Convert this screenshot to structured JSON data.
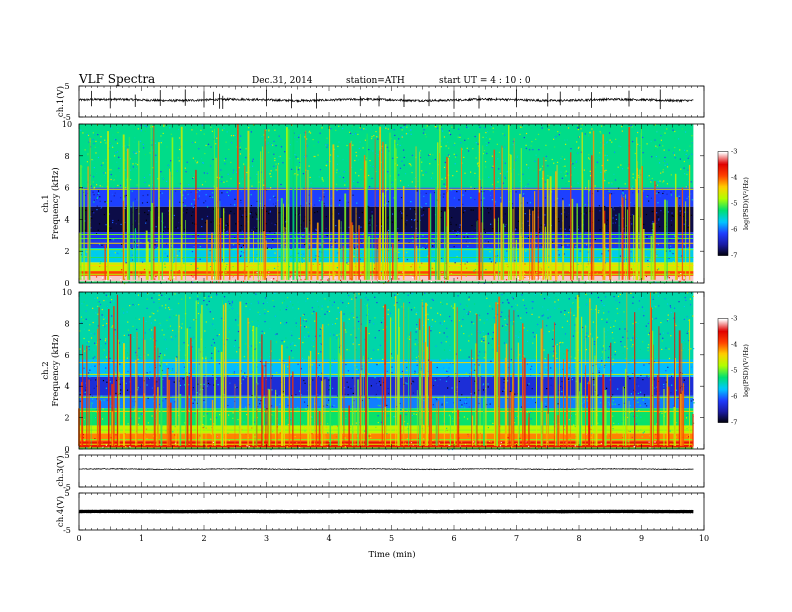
{
  "header": {
    "title": "VLF Spectra",
    "date": "Dec.31, 2014",
    "station": "station=ATH",
    "start": "start  UT  =   4  : 10 : 0"
  },
  "chart_data": [
    {
      "type": "line",
      "panel": "ch1-waveform",
      "ylabel": "ch.1(V)",
      "ylim": [
        -5,
        5
      ],
      "y_ticks": [
        "5",
        "-5"
      ],
      "xlim": [
        0,
        9.83
      ],
      "baseline": 0.5,
      "noise_amplitude": 0.35,
      "spikes": [
        0.2,
        0.5,
        0.9,
        1.3,
        1.7,
        2.0,
        2.15,
        2.25,
        2.3,
        3.0,
        3.4,
        3.8,
        4.5,
        4.8,
        5.2,
        5.6,
        6.0,
        6.4,
        7.0,
        7.5,
        7.7,
        8.2,
        8.8,
        9.3
      ]
    },
    {
      "type": "heatmap",
      "panel": "ch1-spectrogram",
      "ylabel": "Frequency  (kHz)",
      "channel_label": "ch.1",
      "ylim": [
        0,
        10
      ],
      "y_ticks": [
        "0",
        "2",
        "4",
        "6",
        "8",
        "10"
      ],
      "xlim": [
        0,
        9.83
      ],
      "colorbar": {
        "label": "log(PSD)(V²/Hz)",
        "range": [
          -7,
          -3
        ],
        "ticks": [
          "-3",
          "-4",
          "-5",
          "-6",
          "-7"
        ]
      },
      "bands_khz": [
        {
          "y0": 0.0,
          "y1": 0.1,
          "level": -5.2
        },
        {
          "y0": 0.1,
          "y1": 0.45,
          "level": -3.1
        },
        {
          "y0": 0.45,
          "y1": 0.75,
          "level": -3.9
        },
        {
          "y0": 0.75,
          "y1": 1.3,
          "level": -4.6
        },
        {
          "y0": 1.3,
          "y1": 2.2,
          "level": -5.6
        },
        {
          "y0": 2.2,
          "y1": 3.2,
          "level": -6.2
        },
        {
          "y0": 3.2,
          "y1": 4.8,
          "level": -6.8
        },
        {
          "y0": 4.8,
          "y1": 6.0,
          "level": -6.1
        },
        {
          "y0": 6.0,
          "y1": 10.0,
          "level": -5.3
        }
      ],
      "lines_khz": [
        0.55,
        1.1,
        1.6,
        2.1,
        2.5,
        2.8,
        3.05,
        5.9
      ],
      "sferic_level": -4.6
    },
    {
      "type": "heatmap",
      "panel": "ch2-spectrogram",
      "ylabel": "Frequency  (kHz)",
      "channel_label": "ch.2",
      "ylim": [
        0,
        10
      ],
      "y_ticks": [
        "0",
        "2",
        "4",
        "6",
        "8",
        "10"
      ],
      "xlim": [
        0,
        9.83
      ],
      "colorbar": {
        "label": "log(PSD)(V²/Hz)",
        "range": [
          -7,
          -3
        ],
        "ticks": [
          "-3",
          "-4",
          "-5",
          "-6",
          "-7"
        ]
      },
      "bands_khz": [
        {
          "y0": 0.0,
          "y1": 0.1,
          "level": -5.0
        },
        {
          "y0": 0.1,
          "y1": 0.5,
          "level": -3.6
        },
        {
          "y0": 0.5,
          "y1": 1.0,
          "level": -4.1
        },
        {
          "y0": 1.0,
          "y1": 1.5,
          "level": -4.7
        },
        {
          "y0": 1.5,
          "y1": 2.6,
          "level": -5.2
        },
        {
          "y0": 2.6,
          "y1": 3.4,
          "level": -5.9
        },
        {
          "y0": 3.4,
          "y1": 4.6,
          "level": -6.3
        },
        {
          "y0": 4.6,
          "y1": 5.7,
          "level": -5.7
        },
        {
          "y0": 5.7,
          "y1": 10.0,
          "level": -5.4
        }
      ],
      "lines_khz": [
        0.3,
        0.6,
        1.2,
        1.8,
        2.4,
        3.3,
        4.75,
        5.5
      ],
      "sferic_level": -4.5
    },
    {
      "type": "line",
      "panel": "ch3-waveform",
      "ylabel": "ch.3(V)",
      "ylim": [
        -5,
        5
      ],
      "y_ticks": [
        "5",
        "-5"
      ],
      "xlim": [
        0,
        9.83
      ],
      "baseline": 0.6,
      "noise_amplitude": 0.12,
      "spikes": []
    },
    {
      "type": "line",
      "panel": "ch4-waveform",
      "ylabel": "ch.4(V)",
      "ylim": [
        -5,
        5
      ],
      "y_ticks": [
        "5",
        "-5"
      ],
      "xlim": [
        0,
        9.83
      ],
      "baseline": 0.0,
      "noise_amplitude": 0.04,
      "spikes": []
    }
  ],
  "x_axis": {
    "label": "Time  (min)",
    "range": [
      0,
      10
    ],
    "ticks": [
      "0",
      "1",
      "2",
      "3",
      "4",
      "5",
      "6",
      "7",
      "8",
      "9",
      "10"
    ]
  },
  "colormap": [
    "#000000",
    "#1a1aa0",
    "#1e3cff",
    "#00c8ff",
    "#00e070",
    "#b0ff00",
    "#ffd000",
    "#ff4000",
    "#e00000",
    "#ffffff"
  ]
}
